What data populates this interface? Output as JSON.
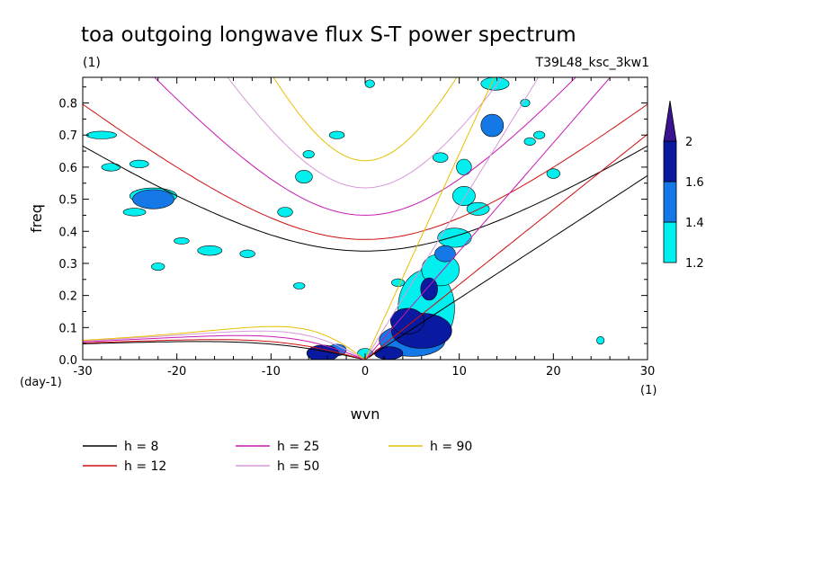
{
  "chart_data": {
    "type": "heatmap",
    "title": "toa outgoing longwave flux S-T power spectrum",
    "units_note": "(1)",
    "experiment": "T39L48_ksc_3kw1",
    "xlabel": "wvn",
    "ylabel": "freq",
    "x_unit": "(1)",
    "y_unit": "(day-1)",
    "xlim": [
      -30,
      30
    ],
    "ylim": [
      0,
      0.88
    ],
    "x_ticks": [
      "-30",
      "-20",
      "-10",
      "0",
      "10",
      "20",
      "30"
    ],
    "y_ticks": [
      "0.0",
      "0.1",
      "0.2",
      "0.3",
      "0.4",
      "0.5",
      "0.6",
      "0.7",
      "0.8"
    ],
    "colorbar": {
      "levels": [
        "1.2",
        "1.4",
        "1.6",
        "2"
      ],
      "colors": [
        "#00f0f0",
        "#1478e6",
        "#0a1aa0",
        "#3a1490"
      ]
    },
    "dispersion_curves": [
      {
        "name": "h =  8",
        "h": 8,
        "color": "#000000"
      },
      {
        "name": "h = 12",
        "h": 12,
        "color": "#d01010"
      },
      {
        "name": "h = 25",
        "h": 25,
        "color": "#c81ab4"
      },
      {
        "name": "h = 50",
        "h": 50,
        "color": "#d898d8"
      },
      {
        "name": "h = 90",
        "h": 90,
        "color": "#e8c000"
      }
    ],
    "contour_patches": [
      {
        "x": 6.0,
        "y": 0.09,
        "rx": 3.2,
        "ry": 0.055,
        "level": 3
      },
      {
        "x": 4.5,
        "y": 0.12,
        "rx": 1.8,
        "ry": 0.04,
        "level": 3
      },
      {
        "x": 6.8,
        "y": 0.22,
        "rx": 0.9,
        "ry": 0.035,
        "level": 3
      },
      {
        "x": 8.5,
        "y": 0.33,
        "rx": 1.1,
        "ry": 0.025,
        "level": 2
      },
      {
        "x": 5.0,
        "y": 0.06,
        "rx": 3.5,
        "ry": 0.05,
        "level": 2
      },
      {
        "x": 2.5,
        "y": 0.02,
        "rx": 1.5,
        "ry": 0.02,
        "level": 3
      },
      {
        "x": -4.5,
        "y": 0.02,
        "rx": 1.7,
        "ry": 0.025,
        "level": 3
      },
      {
        "x": -3.0,
        "y": 0.03,
        "rx": 1.0,
        "ry": 0.018,
        "level": 2
      },
      {
        "x": 6.5,
        "y": 0.16,
        "rx": 3.0,
        "ry": 0.12,
        "level": 1
      },
      {
        "x": 8.0,
        "y": 0.28,
        "rx": 2.0,
        "ry": 0.05,
        "level": 1
      },
      {
        "x": 9.5,
        "y": 0.38,
        "rx": 1.8,
        "ry": 0.03,
        "level": 1
      },
      {
        "x": 10.5,
        "y": 0.51,
        "rx": 1.2,
        "ry": 0.03,
        "level": 1
      },
      {
        "x": 10.5,
        "y": 0.6,
        "rx": 0.8,
        "ry": 0.025,
        "level": 1
      },
      {
        "x": 13.5,
        "y": 0.73,
        "rx": 1.2,
        "ry": 0.035,
        "level": 2
      },
      {
        "x": 13.8,
        "y": 0.86,
        "rx": 1.5,
        "ry": 0.02,
        "level": 1
      },
      {
        "x": 12.0,
        "y": 0.47,
        "rx": 1.2,
        "ry": 0.02,
        "level": 1
      },
      {
        "x": -22.5,
        "y": 0.5,
        "rx": 2.2,
        "ry": 0.03,
        "level": 2
      },
      {
        "x": -22.5,
        "y": 0.51,
        "rx": 2.5,
        "ry": 0.025,
        "level": 1
      },
      {
        "x": -28.0,
        "y": 0.7,
        "rx": 1.6,
        "ry": 0.012,
        "level": 1
      },
      {
        "x": -27.0,
        "y": 0.6,
        "rx": 1.0,
        "ry": 0.012,
        "level": 1
      },
      {
        "x": -24.5,
        "y": 0.46,
        "rx": 1.2,
        "ry": 0.012,
        "level": 1
      },
      {
        "x": -24.0,
        "y": 0.61,
        "rx": 1.0,
        "ry": 0.012,
        "level": 1
      },
      {
        "x": -16.5,
        "y": 0.34,
        "rx": 1.3,
        "ry": 0.015,
        "level": 1
      },
      {
        "x": -12.5,
        "y": 0.33,
        "rx": 0.8,
        "ry": 0.012,
        "level": 1
      },
      {
        "x": -19.5,
        "y": 0.37,
        "rx": 0.8,
        "ry": 0.01,
        "level": 1
      },
      {
        "x": -8.5,
        "y": 0.46,
        "rx": 0.8,
        "ry": 0.015,
        "level": 1
      },
      {
        "x": -6.5,
        "y": 0.57,
        "rx": 0.9,
        "ry": 0.02,
        "level": 1
      },
      {
        "x": -6.0,
        "y": 0.64,
        "rx": 0.6,
        "ry": 0.012,
        "level": 1
      },
      {
        "x": -3.0,
        "y": 0.7,
        "rx": 0.8,
        "ry": 0.012,
        "level": 1
      },
      {
        "x": -22.0,
        "y": 0.29,
        "rx": 0.7,
        "ry": 0.012,
        "level": 1
      },
      {
        "x": -7.0,
        "y": 0.23,
        "rx": 0.6,
        "ry": 0.01,
        "level": 1
      },
      {
        "x": 3.5,
        "y": 0.24,
        "rx": 0.7,
        "ry": 0.012,
        "level": 1
      },
      {
        "x": 8.0,
        "y": 0.63,
        "rx": 0.8,
        "ry": 0.015,
        "level": 1
      },
      {
        "x": 17.5,
        "y": 0.68,
        "rx": 0.6,
        "ry": 0.012,
        "level": 1
      },
      {
        "x": 18.5,
        "y": 0.7,
        "rx": 0.6,
        "ry": 0.012,
        "level": 1
      },
      {
        "x": 20.0,
        "y": 0.58,
        "rx": 0.7,
        "ry": 0.015,
        "level": 1
      },
      {
        "x": 25.0,
        "y": 0.06,
        "rx": 0.4,
        "ry": 0.012,
        "level": 1
      },
      {
        "x": 0.0,
        "y": 0.02,
        "rx": 0.8,
        "ry": 0.015,
        "level": 1
      },
      {
        "x": 17.0,
        "y": 0.8,
        "rx": 0.5,
        "ry": 0.012,
        "level": 1
      },
      {
        "x": 0.5,
        "y": 0.86,
        "rx": 0.5,
        "ry": 0.012,
        "level": 1
      }
    ]
  }
}
